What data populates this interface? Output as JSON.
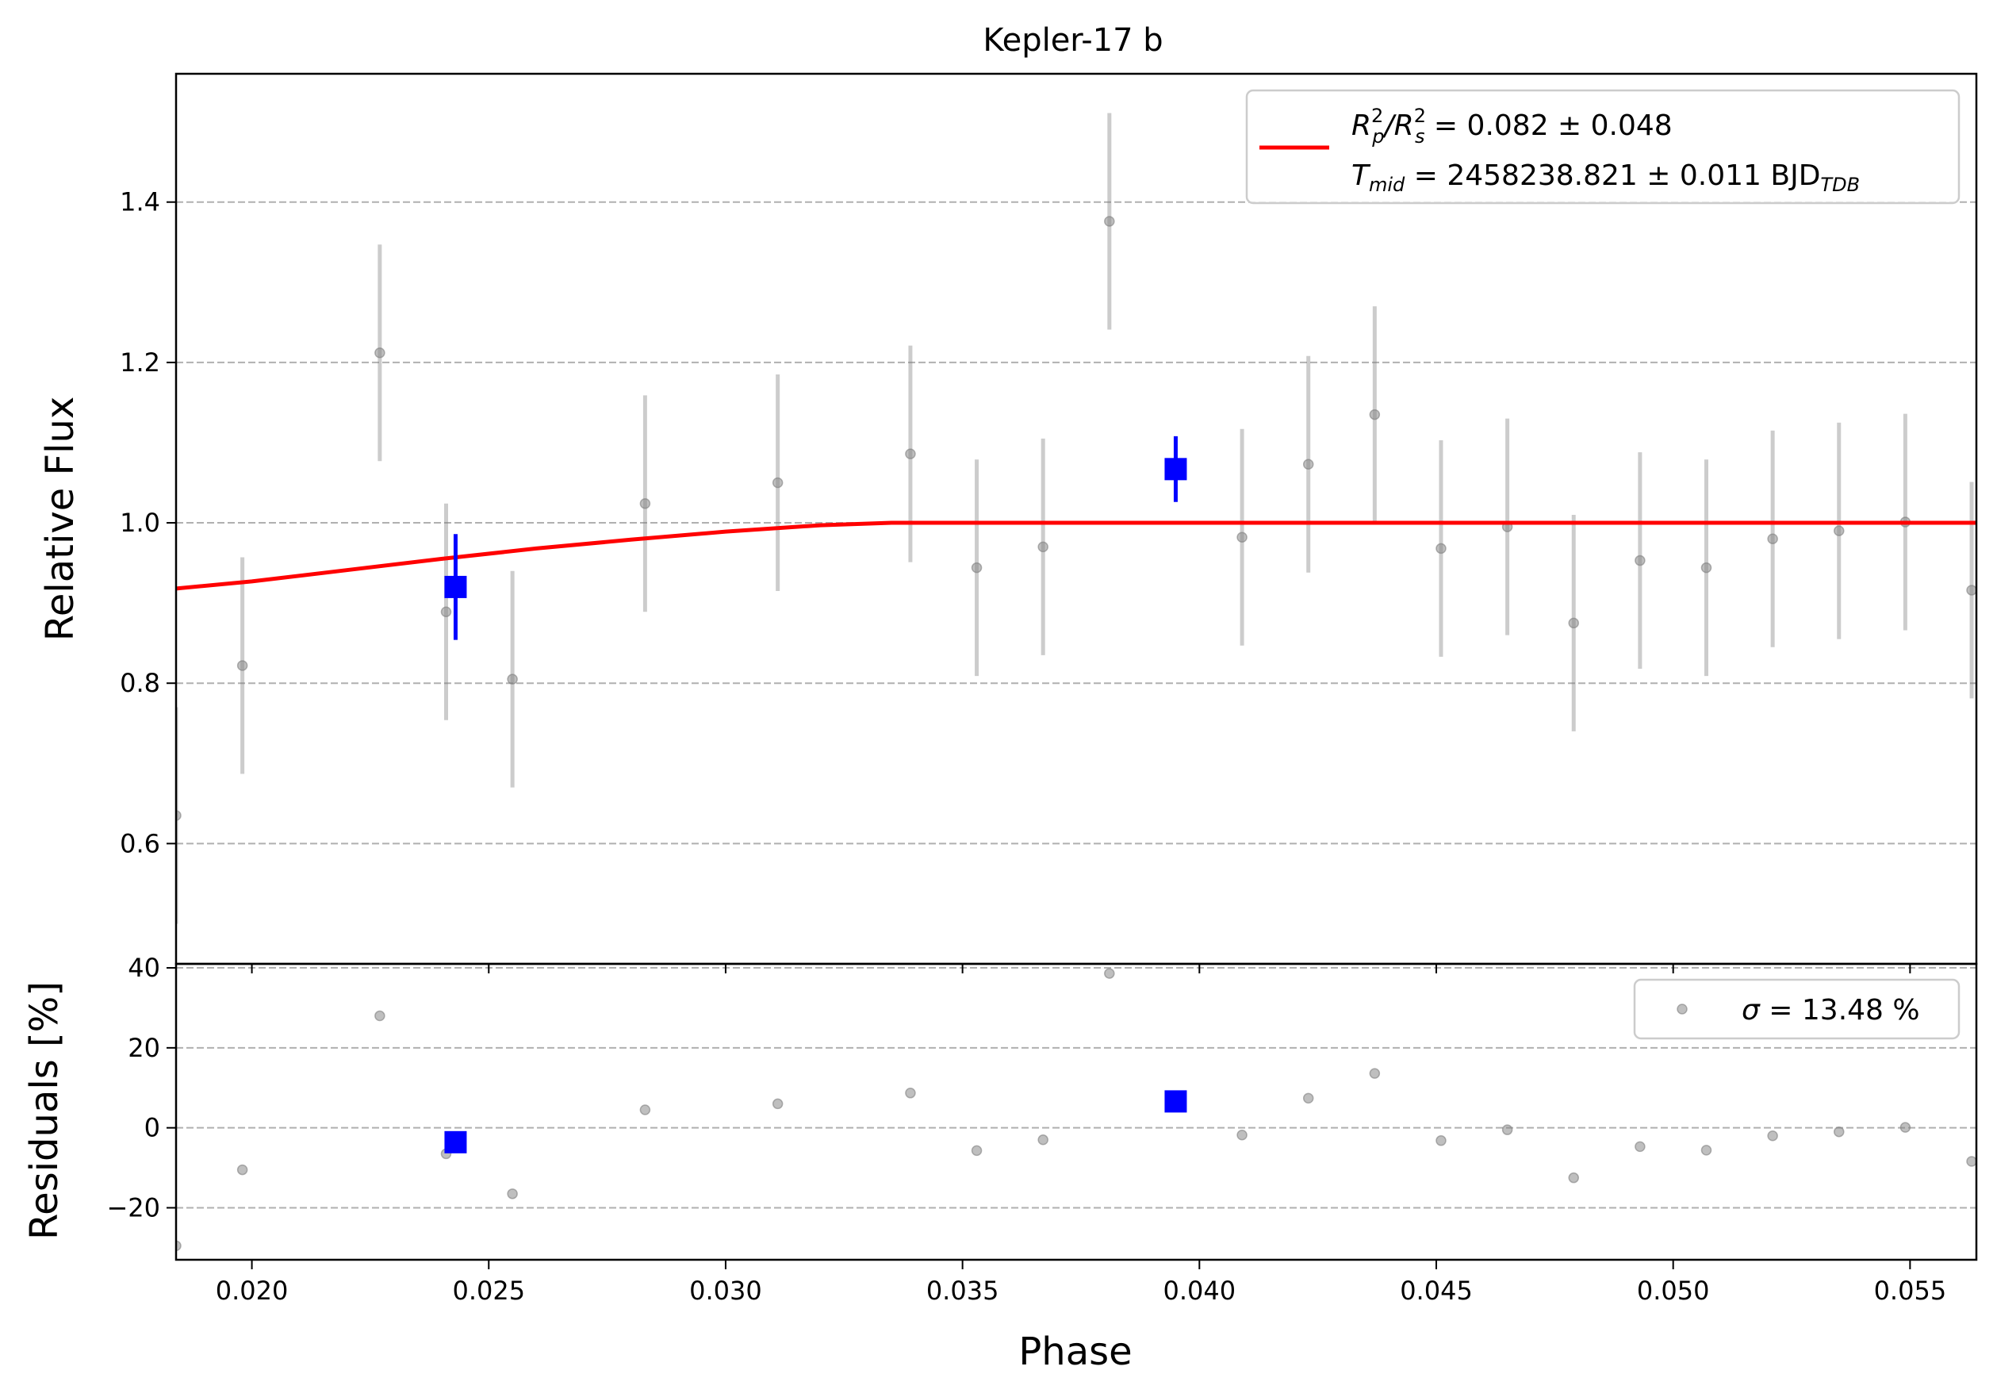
{
  "chart_data": {
    "type": "scatter",
    "title": "Kepler-17 b",
    "xlabel": "Phase",
    "top_panel": {
      "ylabel": "Relative Flux",
      "xlim": [
        0.0184,
        0.0564
      ],
      "ylim": [
        0.45,
        1.56
      ],
      "xticks": [
        0.02,
        0.025,
        0.03,
        0.035,
        0.04,
        0.045,
        0.05,
        0.055
      ],
      "xtick_labels": [
        "0.020",
        "0.025",
        "0.030",
        "0.035",
        "0.040",
        "0.045",
        "0.050",
        "0.055"
      ],
      "yticks": [
        0.6,
        0.8,
        1.0,
        1.2,
        1.4
      ],
      "ytick_labels": [
        "0.6",
        "0.8",
        "1.0",
        "1.2",
        "1.4"
      ],
      "grid": "horizontal dashed",
      "legend": {
        "position": "top-right",
        "line1_main": "R",
        "line1_sup1": "2",
        "line1_sub1": "p",
        "line1_slash": "/R",
        "line1_sup2": "2",
        "line1_sub2": "s",
        "line1_rest": " = 0.082 ± 0.048",
        "line2_main": "T",
        "line2_sub": "mid",
        "line2_rest": " = 2458238.821 ± 0.011 BJD",
        "line2_unit_sub": "TDB",
        "color": "#ff0000"
      },
      "raw_points": {
        "color": "#808080",
        "x": [
          0.0184,
          0.0198,
          0.0227,
          0.0241,
          0.0255,
          0.0283,
          0.0311,
          0.0339,
          0.0353,
          0.0367,
          0.0381,
          0.0409,
          0.0423,
          0.0437,
          0.0451,
          0.0465,
          0.0479,
          0.0493,
          0.0507,
          0.0521,
          0.0535,
          0.0549,
          0.0563
        ],
        "y": [
          0.635,
          0.822,
          1.212,
          0.889,
          0.805,
          1.024,
          1.05,
          1.086,
          0.944,
          0.97,
          1.376,
          0.982,
          1.073,
          1.135,
          0.968,
          0.995,
          0.875,
          0.953,
          0.944,
          0.98,
          0.99,
          1.001,
          0.916
        ],
        "yerr": [
          0.135,
          0.135,
          0.135,
          0.135,
          0.135,
          0.135,
          0.135,
          0.135,
          0.135,
          0.135,
          0.135,
          0.135,
          0.135,
          0.135,
          0.135,
          0.135,
          0.135,
          0.135,
          0.135,
          0.135,
          0.135,
          0.135,
          0.135
        ]
      },
      "binned_points": {
        "color": "#0000ff",
        "x": [
          0.0243,
          0.0395
        ],
        "y": [
          0.92,
          1.067
        ],
        "yerr": [
          0.066,
          0.041
        ]
      },
      "model": {
        "color": "#ff0000",
        "x": [
          0.0184,
          0.02,
          0.022,
          0.024,
          0.026,
          0.028,
          0.03,
          0.032,
          0.0335,
          0.0345,
          0.0564
        ],
        "y": [
          0.918,
          0.927,
          0.941,
          0.955,
          0.968,
          0.979,
          0.989,
          0.997,
          1.0,
          1.0,
          1.0
        ]
      }
    },
    "bottom_panel": {
      "ylabel": "Residuals [%]",
      "xlim": [
        0.0184,
        0.0564
      ],
      "ylim": [
        -33,
        41
      ],
      "yticks": [
        -20,
        0,
        20,
        40
      ],
      "ytick_labels": [
        "−20",
        "0",
        "20",
        "40"
      ],
      "grid": "horizontal dashed",
      "legend": {
        "position": "top-right",
        "label_symbol": "σ",
        "label_rest": " = 13.48 %"
      },
      "raw_points": {
        "x": [
          0.0184,
          0.0198,
          0.0227,
          0.0241,
          0.0255,
          0.0283,
          0.0311,
          0.0339,
          0.0353,
          0.0367,
          0.0381,
          0.0409,
          0.0423,
          0.0437,
          0.0451,
          0.0465,
          0.0479,
          0.0493,
          0.0507,
          0.0521,
          0.0535,
          0.0549,
          0.0563
        ],
        "y": [
          -29.5,
          -10.5,
          28.0,
          -6.5,
          -16.5,
          4.5,
          6.0,
          8.7,
          -5.7,
          -3.0,
          38.6,
          -1.8,
          7.4,
          13.6,
          -3.2,
          -0.5,
          -12.5,
          -4.7,
          -5.6,
          -2.0,
          -1.0,
          0.1,
          -8.4
        ]
      },
      "binned_points": {
        "x": [
          0.0243,
          0.0395
        ],
        "y": [
          -3.6,
          6.6
        ]
      }
    }
  }
}
